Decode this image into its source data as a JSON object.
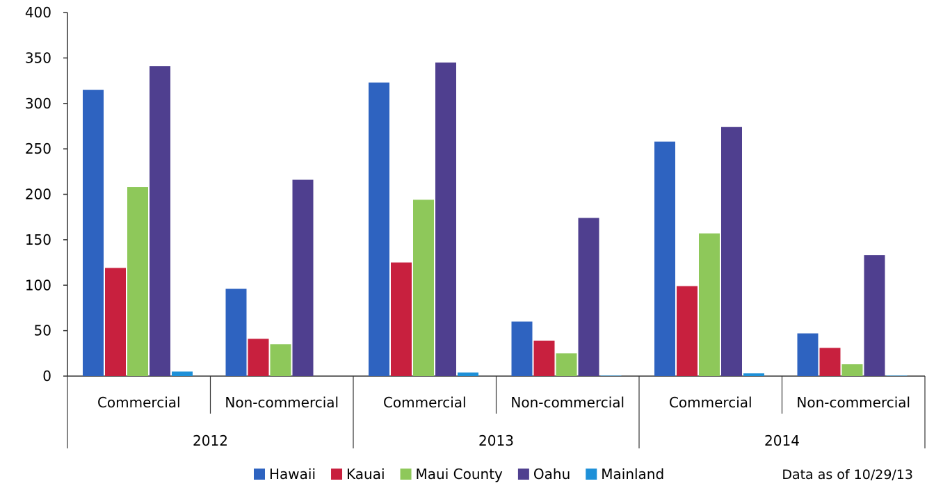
{
  "chart_data": {
    "type": "bar",
    "title": "",
    "xlabel": "",
    "ylabel": "",
    "ylim": [
      0,
      400
    ],
    "yticks": [
      0,
      50,
      100,
      150,
      200,
      250,
      300,
      350,
      400
    ],
    "groups": [
      {
        "label": "2012",
        "categories": [
          "Commercial",
          "Non-commercial"
        ]
      },
      {
        "label": "2013",
        "categories": [
          "Commercial",
          "Non-commercial"
        ]
      },
      {
        "label": "2014",
        "categories": [
          "Commercial",
          "Non-commercial"
        ]
      }
    ],
    "categories": [
      "Commercial",
      "Non-commercial",
      "Commercial",
      "Non-commercial",
      "Commercial",
      "Non-commercial"
    ],
    "series": [
      {
        "name": "Hawaii",
        "color": "#2e63c0",
        "values": [
          315,
          96,
          323,
          60,
          258,
          47
        ]
      },
      {
        "name": "Kauai",
        "color": "#c8203e",
        "values": [
          119,
          41,
          125,
          39,
          99,
          31
        ]
      },
      {
        "name": "Maui County",
        "color": "#8ec85a",
        "values": [
          208,
          35,
          194,
          25,
          157,
          13
        ]
      },
      {
        "name": "Oahu",
        "color": "#4f3f8f",
        "values": [
          341,
          216,
          345,
          174,
          274,
          133
        ]
      },
      {
        "name": "Mainland",
        "color": "#1e90d8",
        "values": [
          5,
          0,
          4,
          0.5,
          3,
          0.5
        ]
      }
    ],
    "grid": false,
    "legend": "bottom",
    "note": "Data as of 10/29/13"
  }
}
